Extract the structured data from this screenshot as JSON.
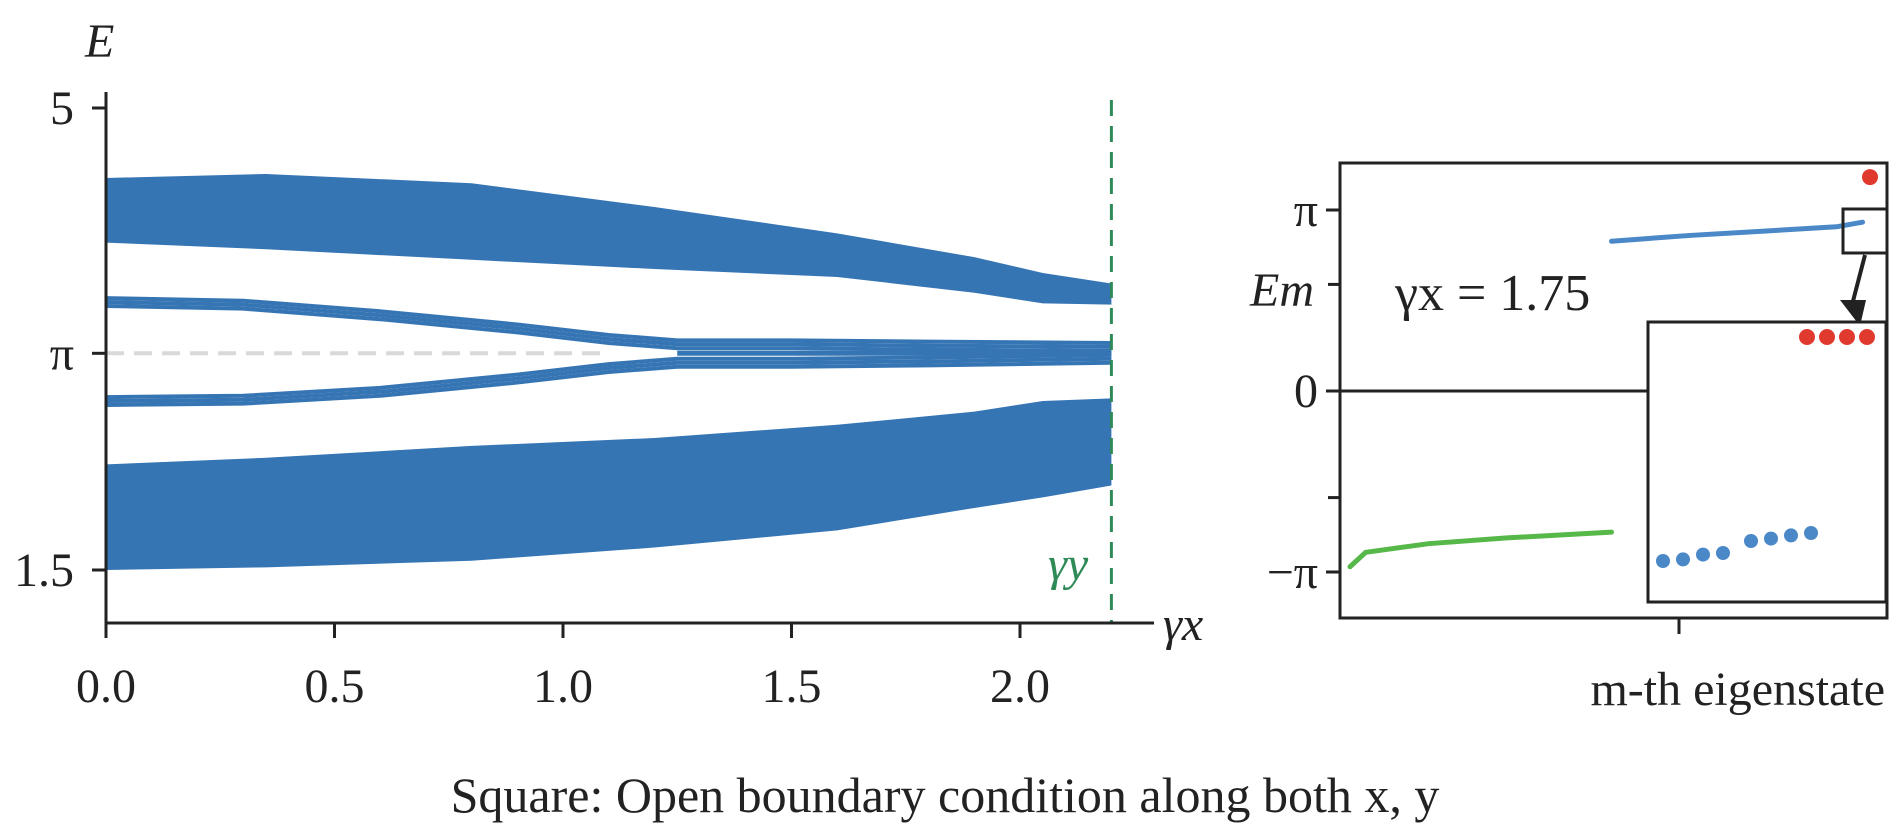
{
  "caption": "Square: Open boundary condition along both x, y",
  "chart_data": [
    {
      "type": "band-spectrum",
      "xlabel": "γx",
      "ylabel": "E",
      "xlim": [
        0,
        2.25
      ],
      "ylim": [
        1.5,
        5
      ],
      "x_ticks": [
        "0.0",
        "0.5",
        "1.0",
        "1.5",
        "2.0"
      ],
      "y_ticks": [
        {
          "label": "5",
          "value": 5
        },
        {
          "label": "π",
          "value": 3.14159
        },
        {
          "label": "1.5",
          "value": 1.5
        }
      ],
      "marker_line": {
        "label": "γy",
        "x": 2.2,
        "color": "#2e8b57"
      },
      "reference_line": {
        "y": 3.14159,
        "color": "#d9d9d9"
      },
      "band_color": "#3675b4",
      "upper_band": {
        "x": [
          0.0,
          0.35,
          0.8,
          1.2,
          1.6,
          1.9,
          2.05,
          2.2
        ],
        "top": [
          4.47,
          4.5,
          4.43,
          4.25,
          4.05,
          3.87,
          3.75,
          3.67
        ],
        "bottom": [
          3.98,
          3.93,
          3.85,
          3.78,
          3.72,
          3.6,
          3.52,
          3.51
        ]
      },
      "lower_band": {
        "x": [
          0.0,
          0.35,
          0.8,
          1.2,
          1.6,
          1.9,
          2.05,
          2.2
        ],
        "top": [
          2.3,
          2.35,
          2.44,
          2.5,
          2.6,
          2.7,
          2.78,
          2.8
        ],
        "bottom": [
          1.5,
          1.52,
          1.57,
          1.67,
          1.8,
          1.97,
          2.05,
          2.14
        ]
      },
      "edge_states": {
        "x": [
          0.0,
          0.3,
          0.6,
          0.9,
          1.1,
          1.25,
          1.5,
          1.8,
          2.2
        ],
        "upper": [
          3.5,
          3.48,
          3.4,
          3.3,
          3.22,
          3.18,
          3.18,
          3.17,
          3.16
        ],
        "lower": [
          2.81,
          2.82,
          2.88,
          2.98,
          3.06,
          3.1,
          3.1,
          3.11,
          3.13
        ],
        "zero_mode": {
          "x_start": 1.25,
          "x_end": 2.2,
          "y": 3.14159
        }
      }
    },
    {
      "type": "scatter",
      "xlabel": "m-th eigenstate",
      "ylabel": "Em",
      "annotation": "γx = 1.75",
      "y_ticks": [
        "π",
        "0",
        "−π"
      ],
      "series": [
        {
          "color": "#56b848",
          "points": [
            [
              0,
              -3.05
            ],
            [
              0.03,
              -2.8
            ],
            [
              0.15,
              -2.65
            ],
            [
              0.3,
              -2.55
            ],
            [
              0.5,
              -2.45
            ]
          ]
        },
        {
          "color": "#4a88c7",
          "points": [
            [
              0.5,
              2.6
            ],
            [
              0.65,
              2.7
            ],
            [
              0.8,
              2.78
            ],
            [
              0.93,
              2.85
            ],
            [
              0.98,
              2.93
            ]
          ]
        },
        {
          "color": "#e03a2e",
          "points": [
            [
              1.0,
              3.14
            ]
          ]
        }
      ],
      "inset": {
        "blue_points": [
          0.2,
          0.22,
          0.28,
          0.3,
          0.45,
          0.48,
          0.52,
          0.55
        ],
        "red_points": [
          1,
          1,
          1,
          1
        ]
      }
    }
  ]
}
